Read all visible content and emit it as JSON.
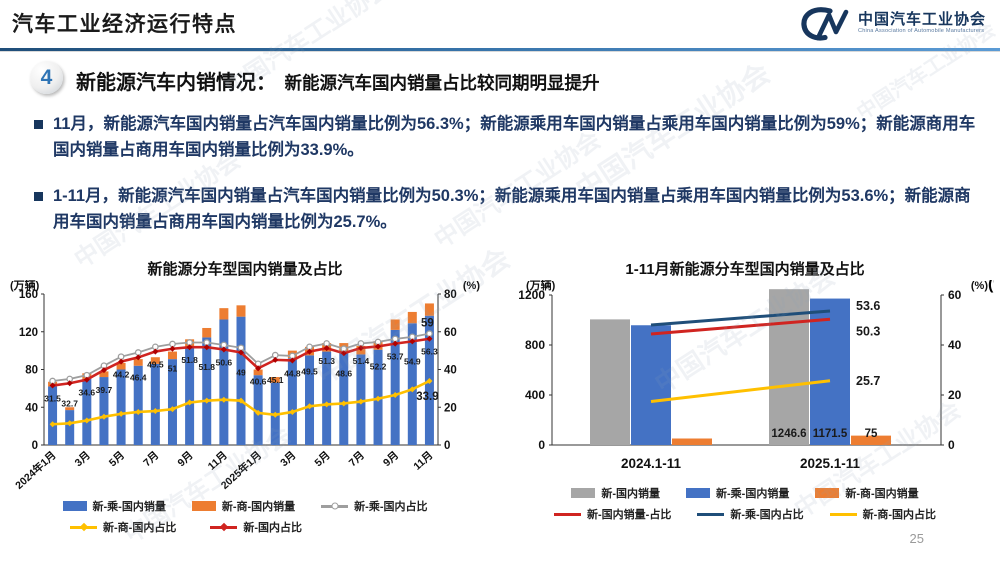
{
  "header": {
    "title": "汽车工业经济运行特点",
    "logo": {
      "mark": "CM",
      "name_cn": "中国汽车工业协会",
      "name_en": "China Association of Automobile Manufacturers"
    }
  },
  "section": {
    "badge": "4",
    "heading": "新能源汽车内销情况：",
    "subheading": "新能源汽车国内销量占比较同期明显提升"
  },
  "bullets": [
    {
      "text": "11月，新能源汽车国内销量占汽车国内销量比例为56.3%；新能源乘用车国内销量占乘用车国内销量比例为59%；新能源商用车国内销量占商用车国内销量比例为33.9%。"
    },
    {
      "text": "1-11月，新能源汽车国内销量占汽车国内销量比例为50.3%；新能源乘用车国内销量占乘用车国内销量比例为53.6%；新能源商用车国内销量占商用车国内销量比例为25.7%。"
    }
  ],
  "watermark": "中国汽车工业协会",
  "page_number": "25",
  "colors": {
    "accent_blue": "#2e74b5",
    "bar_blue": "#4472c4",
    "bar_orange": "#ed7d31",
    "bar_gray": "#a6a6a6",
    "line_red": "#d02420",
    "line_red_dark": "#b00000",
    "line_gray": "#9e9e9e",
    "line_yellow": "#ffc000",
    "line_darkblue": "#1f4e79",
    "text_dark": "#1a1a1a",
    "text_navy": "#1f3864"
  },
  "chart_data": [
    {
      "type": "bar",
      "subtype": "stacked-bars-with-lines",
      "title": "新能源分车型国内销量及占比",
      "unit_left": "(万辆)",
      "unit_right": "(%)",
      "ylim_left": [
        0,
        160
      ],
      "yticks_left": [
        "0",
        "40",
        "80",
        "120",
        "160"
      ],
      "ylim_right": [
        0,
        80
      ],
      "yticks_right": [
        "0",
        "20",
        "40",
        "60",
        "80"
      ],
      "n_points": 23,
      "x_tick_every": 2,
      "x_tick_labels": [
        "2024年1月",
        "3月",
        "5月",
        "7月",
        "9月",
        "11月",
        "2025年1月",
        "3月",
        "5月",
        "7月",
        "9月",
        "11月"
      ],
      "bar_series": [
        {
          "name": "新-乘-国内销量",
          "color_key": "bar_blue",
          "values": [
            62,
            37,
            70,
            72,
            80,
            84,
            86,
            91,
            103,
            114,
            133,
            136,
            74,
            66,
            92,
            95,
            99,
            99,
            96,
            101,
            122,
            129,
            137
          ]
        },
        {
          "name": "新-商-国内销量",
          "color_key": "bar_orange",
          "values": [
            5,
            3,
            6,
            6,
            7,
            7,
            7,
            8,
            9,
            10,
            12,
            12,
            6,
            6,
            8,
            9,
            9,
            9,
            9,
            9,
            11,
            12,
            13
          ]
        }
      ],
      "line_series": [
        {
          "name": "新-乘-国内占比",
          "color_key": "line_gray",
          "marker": "circle",
          "end_label": "59",
          "values": [
            33.9,
            35,
            37,
            42,
            46.8,
            49,
            52,
            53.5,
            54.3,
            54.3,
            53,
            51.5,
            43,
            47.6,
            47.2,
            52,
            53.8,
            51,
            53.8,
            54.6,
            56.2,
            57.3,
            59
          ]
        },
        {
          "name": "新-商-国内占比",
          "color_key": "line_yellow",
          "marker": "diamond",
          "end_label": "33.9",
          "values": [
            11,
            11.5,
            13,
            15,
            16.5,
            17.5,
            18,
            19,
            22.5,
            23.5,
            24,
            23.5,
            17,
            16,
            17.5,
            20.5,
            21.5,
            22,
            23,
            24.5,
            26.5,
            29.5,
            33.9
          ]
        },
        {
          "name": "新-国内占比",
          "color_key": "line_red",
          "marker": "diamond",
          "values": [
            31.5,
            32.7,
            34.6,
            39.7,
            44.2,
            46.4,
            49.5,
            51,
            51.8,
            51.8,
            50.6,
            49,
            40.6,
            45.1,
            44.8,
            49.5,
            51.3,
            48.6,
            51.4,
            52.2,
            53.7,
            54.9,
            56.3
          ],
          "point_labels": [
            "31.5",
            "32.7",
            "34.6",
            "39.7",
            "44.2",
            "46.4",
            "49.5",
            "51",
            "51.8",
            "51.8",
            "50.6",
            "49",
            "40.6",
            "45.1",
            "44.8",
            "49.5",
            "51.3",
            "48.6",
            "51.4",
            "52.2",
            "53.7",
            "54.9",
            "56.3"
          ]
        }
      ],
      "legend_rows": [
        [
          {
            "name": "新-乘-国内销量",
            "type": "bar",
            "color_key": "bar_blue"
          },
          {
            "name": "新-商-国内销量",
            "type": "bar",
            "color_key": "bar_orange"
          },
          {
            "name": "新-乘-国内占比",
            "type": "line",
            "marker": "circle",
            "color_key": "line_gray"
          }
        ],
        [
          {
            "name": "新-商-国内占比",
            "type": "line",
            "marker": "diamond",
            "color_key": "line_yellow"
          },
          {
            "name": "新-国内占比",
            "type": "line",
            "marker": "diamond",
            "color_key": "line_red"
          }
        ]
      ]
    },
    {
      "type": "bar",
      "subtype": "grouped-bars-with-lines",
      "title": "1-11月新能源分车型国内销量及占比",
      "unit_left": "(万辆)",
      "unit_right": "(%)",
      "ylim_left": [
        0,
        1200
      ],
      "yticks_left": [
        "0",
        "400",
        "800",
        "1200"
      ],
      "ylim_right": [
        0,
        60
      ],
      "yticks_right": [
        "0",
        "20",
        "40",
        "60"
      ],
      "categories": [
        "2024.1-11",
        "2025.1-11"
      ],
      "bar_series": [
        {
          "name": "新-国内销量",
          "color_key": "bar_gray",
          "values": [
            1005,
            1246.6
          ],
          "labels": [
            "",
            "1246.6"
          ]
        },
        {
          "name": "新-乘-国内销量",
          "color_key": "bar_blue",
          "values": [
            958,
            1171.5
          ],
          "labels": [
            "",
            "1171.5"
          ]
        },
        {
          "name": "新-商-国内销量",
          "color_key": "bar_orange",
          "values": [
            52,
            75
          ],
          "labels": [
            "",
            "75"
          ]
        }
      ],
      "line_series": [
        {
          "name": "新-乘-国内占比",
          "color_key": "line_darkblue",
          "values": [
            48,
            53.6
          ],
          "end_label": "53.6",
          "label_dy": -1
        },
        {
          "name": "新-国内销量-占比",
          "color_key": "line_red",
          "values": [
            44.4,
            50.3
          ],
          "end_label": "50.3",
          "label_dy": 16
        },
        {
          "name": "新-商-国内占比",
          "color_key": "line_yellow",
          "values": [
            17.4,
            25.7
          ],
          "end_label": "25.7",
          "label_dy": 4
        }
      ],
      "legend_rows": [
        [
          {
            "name": "新-国内销量",
            "type": "bar",
            "color_key": "bar_gray"
          },
          {
            "name": "新-乘-国内销量",
            "type": "bar",
            "color_key": "bar_blue"
          },
          {
            "name": "新-商-国内销量",
            "type": "bar",
            "color_key": "bar_orange"
          }
        ],
        [
          {
            "name": "新-国内销量-占比",
            "type": "line",
            "color_key": "line_red"
          },
          {
            "name": "新-乘-国内占比",
            "type": "line",
            "color_key": "line_darkblue"
          },
          {
            "name": "新-商-国内占比",
            "type": "line",
            "color_key": "line_yellow"
          }
        ]
      ]
    }
  ]
}
